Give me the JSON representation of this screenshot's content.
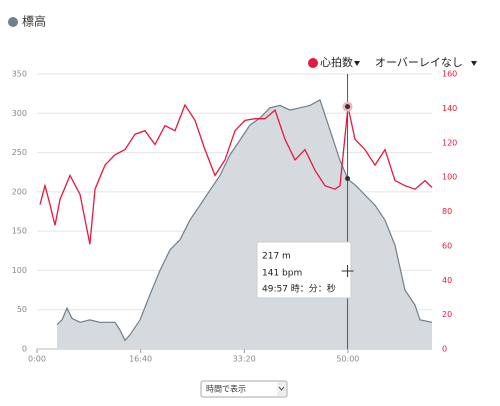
{
  "chart_data": {
    "type": "line",
    "xlim": [
      0,
      3812
    ],
    "xticks": [
      {
        "value": 0,
        "label": "0:00"
      },
      {
        "value": 1000,
        "label": "16:40"
      },
      {
        "value": 2000,
        "label": "33:20"
      },
      {
        "value": 3000,
        "label": "50:00"
      }
    ],
    "ylim": [
      0,
      350
    ],
    "yticks": [
      0,
      50,
      100,
      150,
      200,
      250,
      300,
      350
    ],
    "y2lim": [
      0,
      160
    ],
    "y2ticks": [
      0,
      20,
      40,
      60,
      80,
      100,
      120,
      140,
      160
    ],
    "grid": true,
    "series": [
      {
        "name": "標高",
        "color": "#6e7f8d",
        "fill": "#d5dade",
        "x": [
          193,
          241,
          290,
          338,
          415,
          511,
          608,
          753,
          801,
          849,
          897,
          994,
          1090,
          1187,
          1283,
          1380,
          1476,
          1573,
          1669,
          1766,
          1862,
          1959,
          2055,
          2152,
          2248,
          2345,
          2441,
          2538,
          2634,
          2731,
          2779,
          2827,
          2924,
          3001,
          3069,
          3165,
          3262,
          3358,
          3455,
          3551,
          3648,
          3696,
          3812
        ],
        "values": [
          31,
          37,
          52,
          39,
          34,
          37,
          34,
          34,
          24,
          11,
          18,
          37,
          69,
          100,
          126,
          139,
          164,
          183,
          202,
          221,
          247,
          266,
          285,
          294,
          307,
          310,
          304,
          307,
          310,
          317,
          298,
          279,
          240,
          216,
          209,
          196,
          183,
          164,
          132,
          75,
          56,
          37,
          34
        ]
      },
      {
        "name": "心拍数",
        "color": "#e8173f",
        "axis": "y2",
        "x": [
          29,
          77,
          125,
          174,
          222,
          318,
          415,
          511,
          560,
          656,
          753,
          849,
          946,
          1042,
          1139,
          1235,
          1332,
          1428,
          1525,
          1621,
          1718,
          1814,
          1911,
          2007,
          2104,
          2200,
          2297,
          2393,
          2490,
          2586,
          2683,
          2779,
          2876,
          2924,
          3001,
          3069,
          3165,
          3262,
          3358,
          3455,
          3551,
          3648,
          3744,
          3812
        ],
        "values": [
          84,
          95,
          84,
          72,
          87,
          101,
          90,
          61,
          93,
          107,
          113,
          116,
          125,
          127,
          119,
          130,
          127,
          142,
          133,
          116,
          101,
          110,
          127,
          133,
          134,
          134,
          139,
          122,
          110,
          116,
          104,
          95,
          93,
          95,
          141,
          122,
          116,
          107,
          116,
          98,
          95,
          93,
          98,
          94
        ]
      }
    ],
    "cursor_x": 2997,
    "tooltip": {
      "elevation": {
        "value": 217,
        "label": "217 m"
      },
      "heart_rate": {
        "value": 141,
        "label": "141 bpm"
      },
      "time": "49:57 時：分：秒"
    },
    "overlay_label": "オーバーレイなし",
    "view_select": "時間で表示"
  }
}
